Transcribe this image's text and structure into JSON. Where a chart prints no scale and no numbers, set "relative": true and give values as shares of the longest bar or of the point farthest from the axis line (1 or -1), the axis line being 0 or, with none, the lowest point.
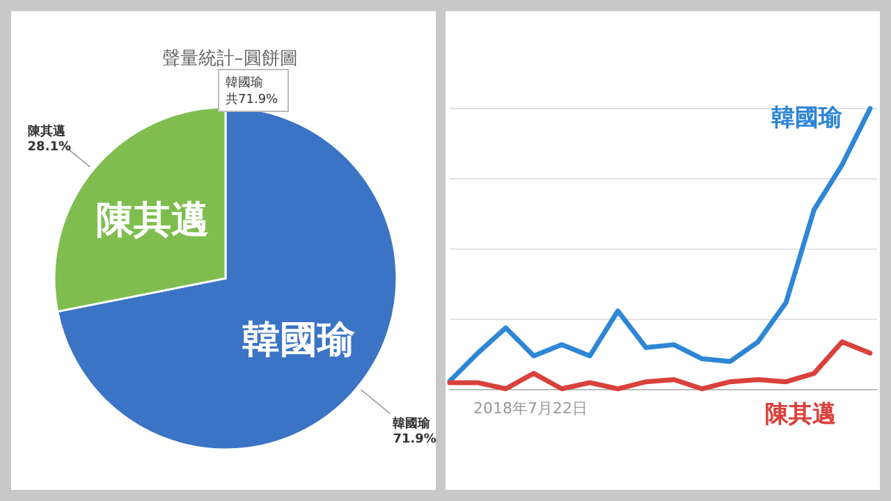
{
  "chart_data": [
    {
      "type": "pie",
      "title": "聲量統計–圓餅圖",
      "categories": [
        "韓國瑜",
        "陳其邁"
      ],
      "values": [
        71.9,
        28.1
      ],
      "colors": [
        "#3b73c5",
        "#7fbd4f"
      ],
      "value_labels": [
        "71.9%",
        "28.1%"
      ],
      "annotations": [
        "韓國瑜",
        "共71.9%"
      ]
    },
    {
      "type": "line",
      "relative": true,
      "grid": "y",
      "annotations": [
        "2018年7月22日"
      ],
      "categories": [
        null,
        null,
        null,
        null,
        null,
        null,
        null,
        null,
        null,
        null,
        null,
        null,
        null,
        null,
        null,
        null
      ],
      "series": [
        {
          "name": "韓國瑜",
          "color": "#2e86d6",
          "values": [
            0.03,
            0.13,
            0.22,
            0.12,
            0.16,
            0.12,
            0.28,
            0.15,
            0.16,
            0.11,
            0.1,
            0.17,
            0.31,
            0.64,
            0.8,
            1.0
          ]
        },
        {
          "name": "陳其邁",
          "color": "#d9413b",
          "values": [
            0.025,
            0.025,
            0.003,
            0.058,
            0.003,
            0.025,
            0.003,
            0.028,
            0.036,
            0.003,
            0.028,
            0.036,
            0.028,
            0.058,
            0.17,
            0.13
          ]
        }
      ]
    }
  ]
}
